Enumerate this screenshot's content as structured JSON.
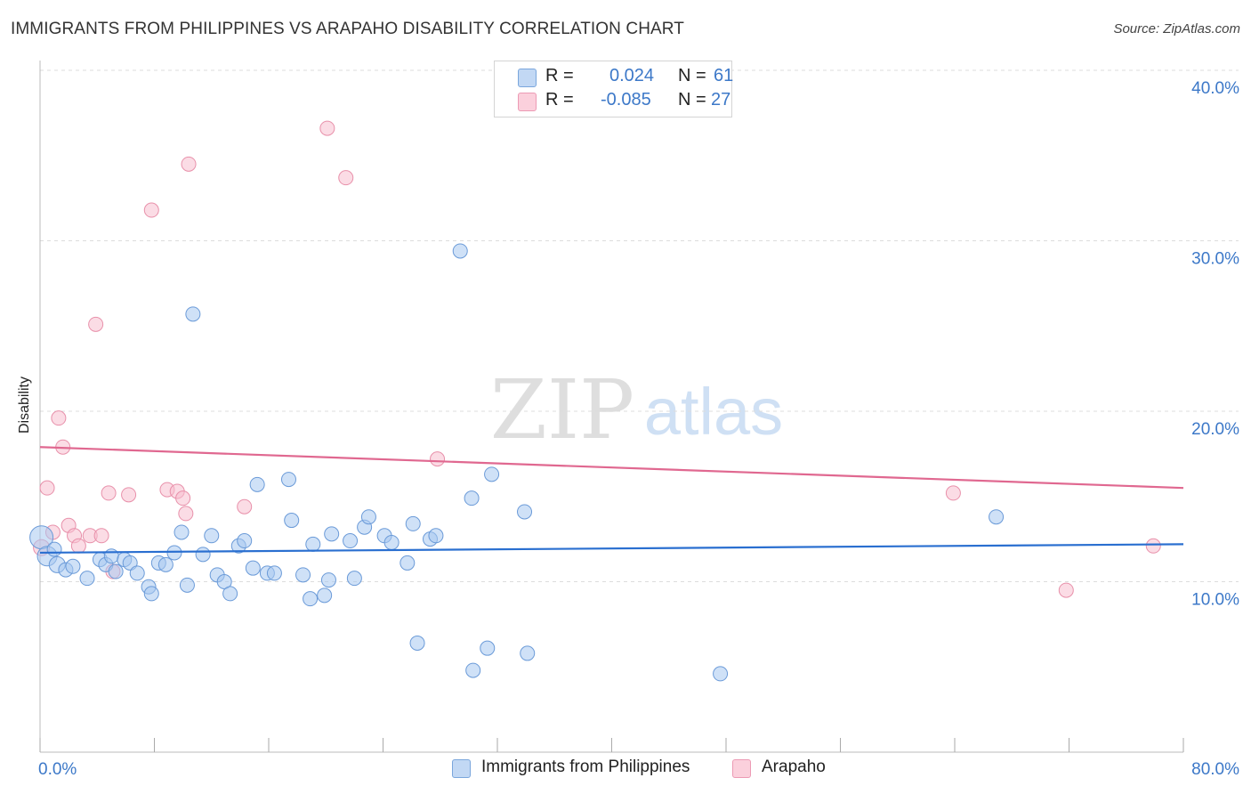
{
  "header": {
    "title": "IMMIGRANTS FROM PHILIPPINES VS ARAPAHO DISABILITY CORRELATION CHART",
    "source": "Source: ZipAtlas.com"
  },
  "watermark": {
    "zip": "ZIP",
    "atlas": "atlas"
  },
  "stats_legend": [
    {
      "r_label": "R =",
      "r_value": "0.024",
      "n_label": "N =",
      "n_value": "61",
      "color": "#a8c8f0"
    },
    {
      "r_label": "R =",
      "r_value": "-0.085",
      "n_label": "N =",
      "n_value": "27",
      "color": "#f8b8cc"
    }
  ],
  "bottom_legend": [
    {
      "label": "Immigrants from Philippines",
      "color": "#a8c8f0"
    },
    {
      "label": "Arapaho",
      "color": "#f8b8cc"
    }
  ],
  "colors": {
    "blue_fill": "#a8c8f0",
    "blue_stroke": "#6a9ad8",
    "blue_line": "#2a6fd0",
    "pink_fill": "#f8c0d0",
    "pink_stroke": "#e890aa",
    "pink_line": "#e06890",
    "tick_label": "#3c78c8",
    "grid": "#dcdcdc",
    "axis": "#bbbbbb"
  },
  "chart_data": {
    "type": "scatter",
    "title": "IMMIGRANTS FROM PHILIPPINES VS ARAPAHO DISABILITY CORRELATION CHART",
    "xlabel": "",
    "ylabel": "Disability",
    "xlim": [
      0,
      80
    ],
    "ylim": [
      0,
      40
    ],
    "x_tick_labels": [
      "0.0%",
      "80.0%"
    ],
    "y_ticks": [
      10,
      20,
      30,
      40
    ],
    "y_tick_labels": [
      "10.0%",
      "20.0%",
      "30.0%",
      "40.0%"
    ],
    "grid": true,
    "series": [
      {
        "name": "Immigrants from Philippines",
        "color": "#a8c8f0",
        "trend": {
          "x": [
            0,
            80
          ],
          "y": [
            11.7,
            12.2
          ]
        },
        "points": [
          {
            "x": 0.1,
            "y": 12.6,
            "s": 13
          },
          {
            "x": 0.5,
            "y": 11.5,
            "s": 11
          },
          {
            "x": 1.2,
            "y": 11.0,
            "s": 9
          },
          {
            "x": 1.8,
            "y": 10.7,
            "s": 8
          },
          {
            "x": 2.3,
            "y": 10.9,
            "s": 8
          },
          {
            "x": 3.3,
            "y": 10.2,
            "s": 8
          },
          {
            "x": 4.2,
            "y": 11.3,
            "s": 8
          },
          {
            "x": 4.6,
            "y": 11.0,
            "s": 8
          },
          {
            "x": 5.0,
            "y": 11.5,
            "s": 8
          },
          {
            "x": 5.3,
            "y": 10.6,
            "s": 8
          },
          {
            "x": 5.9,
            "y": 11.3,
            "s": 8
          },
          {
            "x": 6.3,
            "y": 11.1,
            "s": 8
          },
          {
            "x": 6.8,
            "y": 10.5,
            "s": 8
          },
          {
            "x": 7.6,
            "y": 9.7,
            "s": 8
          },
          {
            "x": 7.8,
            "y": 9.3,
            "s": 8
          },
          {
            "x": 8.3,
            "y": 11.1,
            "s": 8
          },
          {
            "x": 8.8,
            "y": 11.0,
            "s": 8
          },
          {
            "x": 9.4,
            "y": 11.7,
            "s": 8
          },
          {
            "x": 9.9,
            "y": 12.9,
            "s": 8
          },
          {
            "x": 10.3,
            "y": 9.8,
            "s": 8
          },
          {
            "x": 10.7,
            "y": 25.7,
            "s": 8
          },
          {
            "x": 11.4,
            "y": 11.6,
            "s": 8
          },
          {
            "x": 12.0,
            "y": 12.7,
            "s": 8
          },
          {
            "x": 12.4,
            "y": 10.4,
            "s": 8
          },
          {
            "x": 12.9,
            "y": 10.0,
            "s": 8
          },
          {
            "x": 13.3,
            "y": 9.3,
            "s": 8
          },
          {
            "x": 13.9,
            "y": 12.1,
            "s": 8
          },
          {
            "x": 14.3,
            "y": 12.4,
            "s": 8
          },
          {
            "x": 14.9,
            "y": 10.8,
            "s": 8
          },
          {
            "x": 15.2,
            "y": 15.7,
            "s": 8
          },
          {
            "x": 15.9,
            "y": 10.5,
            "s": 8
          },
          {
            "x": 16.4,
            "y": 10.5,
            "s": 8
          },
          {
            "x": 17.4,
            "y": 16.0,
            "s": 8
          },
          {
            "x": 17.6,
            "y": 13.6,
            "s": 8
          },
          {
            "x": 18.4,
            "y": 10.4,
            "s": 8
          },
          {
            "x": 18.9,
            "y": 9.0,
            "s": 8
          },
          {
            "x": 19.1,
            "y": 12.2,
            "s": 8
          },
          {
            "x": 19.9,
            "y": 9.2,
            "s": 8
          },
          {
            "x": 20.2,
            "y": 10.1,
            "s": 8
          },
          {
            "x": 20.4,
            "y": 12.8,
            "s": 8
          },
          {
            "x": 21.7,
            "y": 12.4,
            "s": 8
          },
          {
            "x": 22.0,
            "y": 10.2,
            "s": 8
          },
          {
            "x": 22.7,
            "y": 13.2,
            "s": 8
          },
          {
            "x": 23.0,
            "y": 13.8,
            "s": 8
          },
          {
            "x": 24.1,
            "y": 12.7,
            "s": 8
          },
          {
            "x": 24.6,
            "y": 12.3,
            "s": 8
          },
          {
            "x": 25.7,
            "y": 11.1,
            "s": 8
          },
          {
            "x": 26.1,
            "y": 13.4,
            "s": 8
          },
          {
            "x": 26.4,
            "y": 6.4,
            "s": 8
          },
          {
            "x": 27.3,
            "y": 12.5,
            "s": 8
          },
          {
            "x": 27.7,
            "y": 12.7,
            "s": 8
          },
          {
            "x": 29.4,
            "y": 29.4,
            "s": 8
          },
          {
            "x": 30.2,
            "y": 14.9,
            "s": 8
          },
          {
            "x": 30.3,
            "y": 4.8,
            "s": 8
          },
          {
            "x": 31.3,
            "y": 6.1,
            "s": 8
          },
          {
            "x": 31.6,
            "y": 16.3,
            "s": 8
          },
          {
            "x": 33.9,
            "y": 14.1,
            "s": 8
          },
          {
            "x": 34.1,
            "y": 5.8,
            "s": 8
          },
          {
            "x": 47.6,
            "y": 4.6,
            "s": 8
          },
          {
            "x": 66.9,
            "y": 13.8,
            "s": 8
          },
          {
            "x": 1.0,
            "y": 11.9,
            "s": 8
          }
        ]
      },
      {
        "name": "Arapaho",
        "color": "#f8b8cc",
        "trend": {
          "x": [
            0,
            80
          ],
          "y": [
            17.9,
            15.5
          ]
        },
        "points": [
          {
            "x": 0.1,
            "y": 12.0,
            "s": 9
          },
          {
            "x": 0.5,
            "y": 15.5,
            "s": 8
          },
          {
            "x": 0.9,
            "y": 12.9,
            "s": 8
          },
          {
            "x": 1.3,
            "y": 19.6,
            "s": 8
          },
          {
            "x": 1.6,
            "y": 17.9,
            "s": 8
          },
          {
            "x": 2.0,
            "y": 13.3,
            "s": 8
          },
          {
            "x": 2.4,
            "y": 12.7,
            "s": 8
          },
          {
            "x": 2.7,
            "y": 12.1,
            "s": 8
          },
          {
            "x": 3.5,
            "y": 12.7,
            "s": 8
          },
          {
            "x": 4.3,
            "y": 12.7,
            "s": 8
          },
          {
            "x": 4.8,
            "y": 15.2,
            "s": 8
          },
          {
            "x": 5.1,
            "y": 10.6,
            "s": 8
          },
          {
            "x": 6.2,
            "y": 15.1,
            "s": 8
          },
          {
            "x": 3.9,
            "y": 25.1,
            "s": 8
          },
          {
            "x": 7.8,
            "y": 31.8,
            "s": 8
          },
          {
            "x": 8.9,
            "y": 15.4,
            "s": 8
          },
          {
            "x": 9.6,
            "y": 15.3,
            "s": 8
          },
          {
            "x": 10.0,
            "y": 14.9,
            "s": 8
          },
          {
            "x": 10.2,
            "y": 14.0,
            "s": 8
          },
          {
            "x": 10.4,
            "y": 34.5,
            "s": 8
          },
          {
            "x": 14.3,
            "y": 14.4,
            "s": 8
          },
          {
            "x": 20.1,
            "y": 36.6,
            "s": 8
          },
          {
            "x": 21.4,
            "y": 33.7,
            "s": 8
          },
          {
            "x": 27.8,
            "y": 17.2,
            "s": 8
          },
          {
            "x": 63.9,
            "y": 15.2,
            "s": 8
          },
          {
            "x": 71.8,
            "y": 9.5,
            "s": 8
          },
          {
            "x": 77.9,
            "y": 12.1,
            "s": 8
          }
        ]
      }
    ]
  }
}
